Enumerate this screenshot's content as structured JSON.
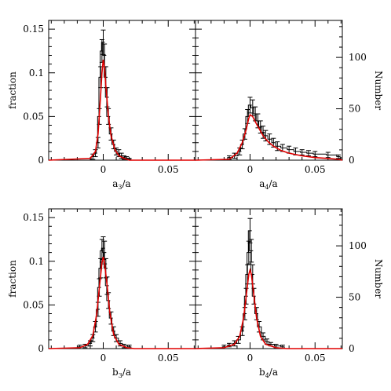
{
  "chart_data": [
    {
      "type": "histogram",
      "xlabel": "a",
      "xlabel_sub": "3",
      "xlabel_suffix": "/a",
      "xlim": [
        -0.042,
        0.071
      ],
      "ylim": [
        0,
        0.16
      ],
      "xticks": [
        "0",
        "0.05"
      ],
      "yticks": [
        "0",
        "0.05",
        "0.1",
        "0.15"
      ],
      "ylabel_left": "fraction",
      "hist": {
        "x": [
          -0.008,
          -0.006,
          -0.004,
          -0.003,
          -0.002,
          -0.001,
          0.0,
          0.001,
          0.002,
          0.003,
          0.004,
          0.006,
          0.008,
          0.01,
          0.012,
          0.014,
          0.016,
          0.018,
          0.02
        ],
        "y": [
          0.004,
          0.008,
          0.02,
          0.05,
          0.095,
          0.125,
          0.135,
          0.12,
          0.095,
          0.072,
          0.05,
          0.03,
          0.018,
          0.01,
          0.008,
          0.005,
          0.003,
          0.002,
          0.001
        ],
        "err": [
          0.003,
          0.004,
          0.006,
          0.009,
          0.012,
          0.013,
          0.014,
          0.013,
          0.012,
          0.011,
          0.009,
          0.007,
          0.005,
          0.004,
          0.004,
          0.003,
          0.002,
          0.002,
          0.001
        ]
      },
      "fit": {
        "x": [
          -0.01,
          -0.006,
          -0.004,
          -0.002,
          -0.001,
          0.0,
          0.001,
          0.002,
          0.004,
          0.006,
          0.009,
          0.012,
          0.016,
          0.02
        ],
        "y": [
          0.002,
          0.01,
          0.03,
          0.075,
          0.1,
          0.115,
          0.105,
          0.085,
          0.05,
          0.028,
          0.012,
          0.005,
          0.002,
          0.0
        ]
      }
    },
    {
      "type": "histogram",
      "xlabel": "a",
      "xlabel_sub": "4",
      "xlabel_suffix": "/a",
      "xlim": [
        -0.042,
        0.071
      ],
      "ylim": [
        0,
        0.16
      ],
      "xticks": [
        "0",
        "0.05"
      ],
      "ylabel_right": "Number",
      "right_yticks": [
        "0",
        "50",
        "100"
      ],
      "right_ylim": [
        0,
        136
      ],
      "hist": {
        "x": [
          -0.016,
          -0.012,
          -0.008,
          -0.006,
          -0.004,
          -0.002,
          0.0,
          0.002,
          0.004,
          0.006,
          0.008,
          0.01,
          0.012,
          0.015,
          0.018,
          0.021,
          0.025,
          0.03,
          0.035,
          0.04,
          0.045,
          0.05,
          0.06,
          0.068
        ],
        "y": [
          0.003,
          0.005,
          0.01,
          0.018,
          0.03,
          0.05,
          0.063,
          0.06,
          0.053,
          0.045,
          0.038,
          0.032,
          0.028,
          0.024,
          0.02,
          0.016,
          0.014,
          0.012,
          0.01,
          0.009,
          0.008,
          0.007,
          0.006,
          0.004
        ],
        "err": [
          0.002,
          0.003,
          0.004,
          0.005,
          0.006,
          0.008,
          0.009,
          0.009,
          0.008,
          0.008,
          0.007,
          0.007,
          0.006,
          0.006,
          0.005,
          0.005,
          0.004,
          0.004,
          0.004,
          0.003,
          0.003,
          0.003,
          0.003,
          0.002
        ]
      },
      "fit": {
        "x": [
          -0.016,
          -0.01,
          -0.006,
          -0.003,
          -0.001,
          0.0,
          0.002,
          0.004,
          0.007,
          0.01,
          0.014,
          0.018,
          0.024,
          0.03,
          0.04,
          0.05,
          0.06,
          0.068
        ],
        "y": [
          0.001,
          0.008,
          0.02,
          0.035,
          0.048,
          0.052,
          0.05,
          0.044,
          0.036,
          0.028,
          0.021,
          0.016,
          0.011,
          0.008,
          0.005,
          0.003,
          0.002,
          0.001
        ]
      }
    },
    {
      "type": "histogram",
      "xlabel": "b",
      "xlabel_sub": "3",
      "xlabel_suffix": "/a",
      "xlim": [
        -0.042,
        0.071
      ],
      "ylim": [
        0,
        0.16
      ],
      "xticks": [
        "0",
        "0.05"
      ],
      "yticks": [
        "0",
        "0.05",
        "0.1",
        "0.15"
      ],
      "ylabel_left": "fraction",
      "hist": {
        "x": [
          -0.018,
          -0.014,
          -0.01,
          -0.008,
          -0.006,
          -0.004,
          -0.003,
          -0.002,
          -0.001,
          0.0,
          0.001,
          0.002,
          0.003,
          0.004,
          0.006,
          0.008,
          0.01,
          0.013,
          0.016,
          0.02
        ],
        "y": [
          0.002,
          0.003,
          0.006,
          0.012,
          0.025,
          0.045,
          0.07,
          0.092,
          0.112,
          0.115,
          0.11,
          0.092,
          0.072,
          0.055,
          0.035,
          0.02,
          0.012,
          0.006,
          0.003,
          0.002
        ],
        "err": [
          0.002,
          0.002,
          0.003,
          0.004,
          0.006,
          0.008,
          0.01,
          0.011,
          0.013,
          0.013,
          0.013,
          0.011,
          0.01,
          0.009,
          0.007,
          0.005,
          0.004,
          0.003,
          0.002,
          0.002
        ]
      },
      "fit": {
        "x": [
          -0.018,
          -0.012,
          -0.008,
          -0.005,
          -0.003,
          -0.001,
          0.0,
          0.001,
          0.003,
          0.005,
          0.008,
          0.012,
          0.018,
          0.024
        ],
        "y": [
          0.001,
          0.005,
          0.015,
          0.04,
          0.07,
          0.098,
          0.105,
          0.098,
          0.072,
          0.042,
          0.016,
          0.005,
          0.001,
          0.0
        ]
      }
    },
    {
      "type": "histogram",
      "xlabel": "b",
      "xlabel_sub": "4",
      "xlabel_suffix": "/a",
      "xlim": [
        -0.042,
        0.071
      ],
      "ylim": [
        0,
        0.16
      ],
      "xticks": [
        "0",
        "0.05"
      ],
      "ylabel_right": "Number",
      "right_yticks": [
        "0",
        "50",
        "100"
      ],
      "right_ylim": [
        0,
        136
      ],
      "hist": {
        "x": [
          -0.02,
          -0.016,
          -0.012,
          -0.009,
          -0.006,
          -0.004,
          -0.003,
          -0.002,
          -0.001,
          0.0,
          0.001,
          0.002,
          0.003,
          0.005,
          0.007,
          0.01,
          0.013,
          0.016,
          0.02,
          0.025
        ],
        "y": [
          0.002,
          0.004,
          0.006,
          0.01,
          0.02,
          0.04,
          0.06,
          0.085,
          0.11,
          0.135,
          0.112,
          0.085,
          0.06,
          0.04,
          0.025,
          0.014,
          0.008,
          0.005,
          0.003,
          0.002
        ],
        "err": [
          0.002,
          0.002,
          0.003,
          0.004,
          0.005,
          0.007,
          0.009,
          0.011,
          0.013,
          0.014,
          0.013,
          0.011,
          0.009,
          0.007,
          0.006,
          0.004,
          0.003,
          0.002,
          0.002,
          0.002
        ]
      },
      "fit": {
        "x": [
          -0.02,
          -0.012,
          -0.008,
          -0.005,
          -0.003,
          -0.001,
          0.0,
          0.001,
          0.003,
          0.005,
          0.008,
          0.012,
          0.02,
          0.028
        ],
        "y": [
          0.001,
          0.005,
          0.014,
          0.035,
          0.06,
          0.085,
          0.09,
          0.085,
          0.06,
          0.035,
          0.014,
          0.005,
          0.001,
          0.0
        ]
      }
    }
  ]
}
